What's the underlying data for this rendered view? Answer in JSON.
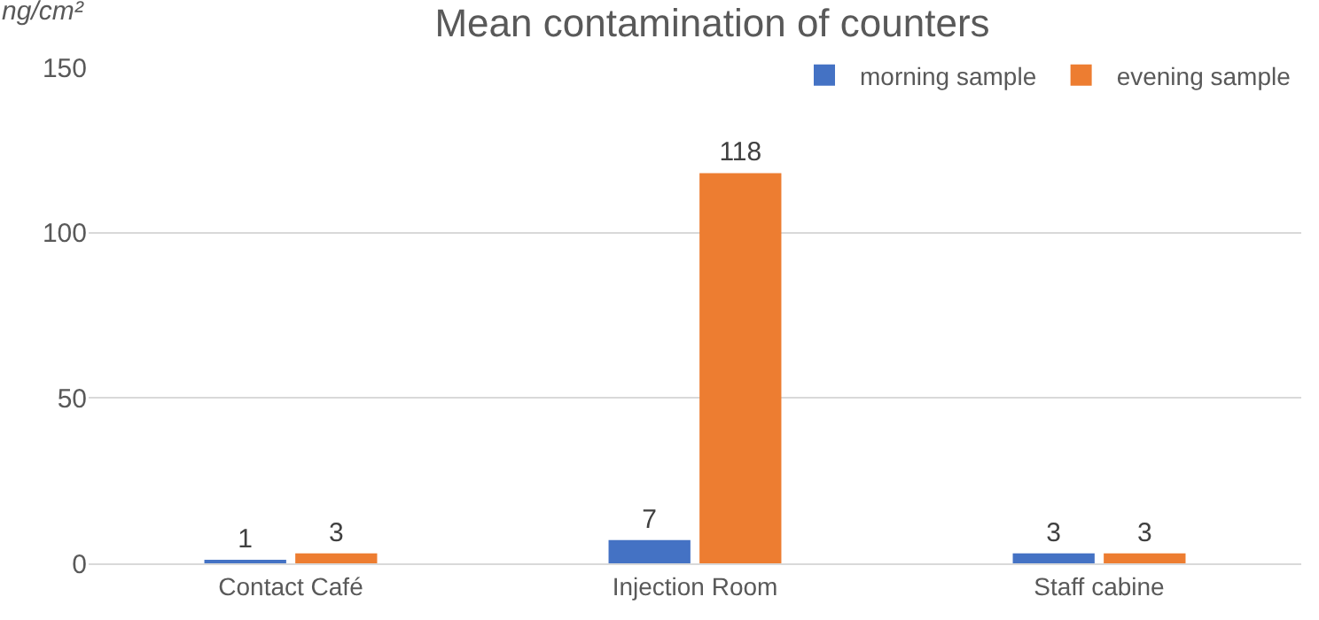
{
  "chart_data": {
    "type": "bar",
    "title": "Mean contamination of counters",
    "ylabel": "ng/cm²",
    "categories": [
      "Contact Café",
      "Injection Room",
      "Staff cabine"
    ],
    "series": [
      {
        "name": "morning sample",
        "color": "#4472c4",
        "values": [
          1,
          7,
          3
        ]
      },
      {
        "name": "evening sample",
        "color": "#ed7d31",
        "values": [
          3,
          118,
          3
        ]
      }
    ],
    "ylim": [
      0,
      150
    ],
    "yticks": [
      0,
      50,
      100,
      150
    ],
    "grid": "y",
    "legend": "top right",
    "data_labels": true
  }
}
